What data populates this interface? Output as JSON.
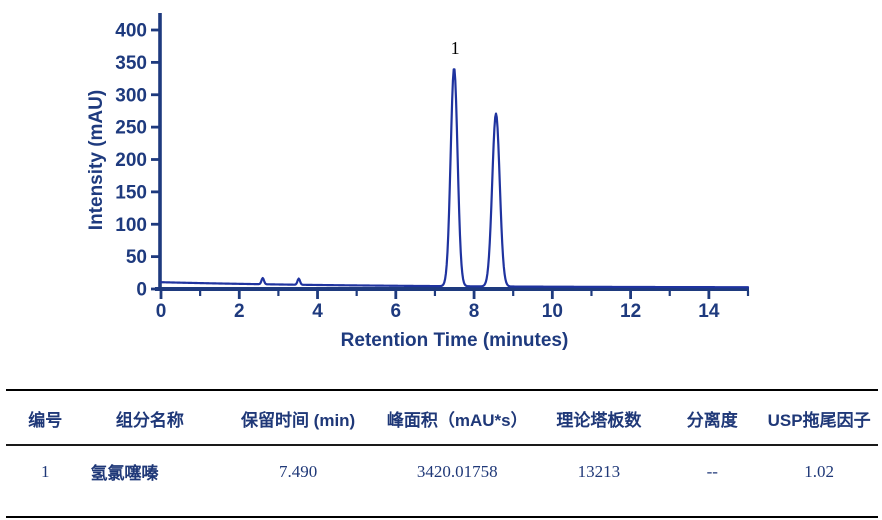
{
  "chart": {
    "colors": {
      "axis": "#1e3a7e",
      "tick_text": "#1e3a7e",
      "trace": "#1f339f",
      "annotation": "#000000"
    },
    "y_axis": {
      "label": "Intensity (mAU)",
      "tick_labels": [
        "0",
        "50",
        "100",
        "150",
        "200",
        "250",
        "300",
        "350",
        "400"
      ],
      "tick_values": [
        0,
        50,
        100,
        150,
        200,
        250,
        300,
        350,
        400
      ]
    },
    "x_axis": {
      "label": "Retention Time (minutes)",
      "tick_labels": [
        "0",
        "2",
        "4",
        "6",
        "8",
        "10",
        "12",
        "14"
      ],
      "tick_values": [
        0,
        2,
        4,
        6,
        8,
        10,
        12,
        14
      ],
      "minor_tick_values": [
        1,
        3,
        5,
        7,
        9,
        11,
        13,
        15
      ]
    }
  },
  "chart_data": {
    "type": "line",
    "title": "",
    "xlabel": "Retention Time (minutes)",
    "ylabel": "Intensity (mAU)",
    "xlim": [
      0,
      15
    ],
    "ylim": [
      0,
      400
    ],
    "grid": false,
    "legend": "none",
    "baseline": {
      "start_mAU": 10.5,
      "end_mAU": 2.7,
      "shape": "exponential-decay",
      "offset_mAU": 2.2,
      "amplitude_mAU": 8.3,
      "tau_min": 5.5
    },
    "peaks": [
      {
        "label": "1",
        "rt_min": 7.49,
        "height_mAU": 337,
        "sigma_min": 0.088,
        "annotated": true
      },
      {
        "label": "",
        "rt_min": 8.56,
        "height_mAU": 267,
        "sigma_min": 0.096,
        "annotated": false
      },
      {
        "label": "",
        "rt_min": 2.6,
        "height_mAU": 9.5,
        "sigma_min": 0.032,
        "annotated": false
      },
      {
        "label": "",
        "rt_min": 3.52,
        "height_mAU": 9.5,
        "sigma_min": 0.032,
        "annotated": false
      }
    ]
  },
  "table": {
    "headers": [
      "编号",
      "组分名称",
      "保留时间 (min)",
      "峰面积（mAU*s）",
      "理论塔板数",
      "分离度",
      "USP拖尾因子"
    ],
    "col_widths_pct": [
      9,
      15,
      19,
      17.5,
      15,
      11,
      13.5
    ],
    "rows": [
      [
        "1",
        "氢氯噻嗪",
        "7.490",
        "3420.01758",
        "13213",
        "--",
        "1.02"
      ]
    ]
  }
}
